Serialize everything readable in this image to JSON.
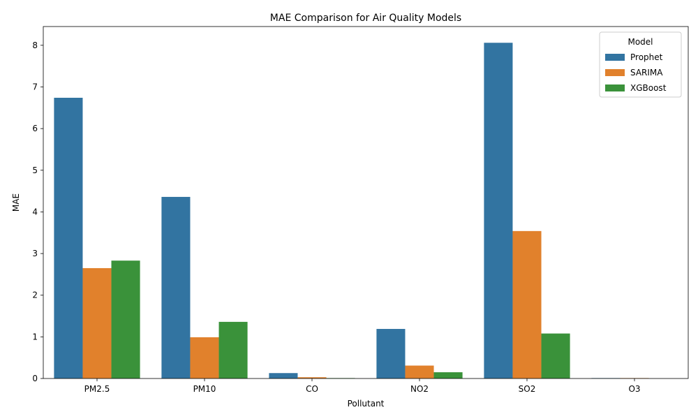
{
  "chart_data": {
    "type": "bar",
    "title": "MAE Comparison for Air Quality Models",
    "xlabel": "Pollutant",
    "ylabel": "MAE",
    "categories": [
      "PM2.5",
      "PM10",
      "CO",
      "NO2",
      "SO2",
      "O3"
    ],
    "series": [
      {
        "name": "Prophet",
        "color": "#3274a1",
        "values": [
          6.74,
          4.36,
          0.13,
          1.19,
          8.06,
          0.01
        ]
      },
      {
        "name": "SARIMA",
        "color": "#e1812c",
        "values": [
          2.65,
          0.99,
          0.03,
          0.31,
          3.54,
          0.01
        ]
      },
      {
        "name": "XGBoost",
        "color": "#3a923a",
        "values": [
          2.83,
          1.36,
          0.01,
          0.15,
          1.08,
          0.0
        ]
      }
    ],
    "ylim": [
      0,
      8.45
    ],
    "yticks": [
      0,
      1,
      2,
      3,
      4,
      5,
      6,
      7,
      8
    ],
    "grid": false,
    "legend": {
      "title": "Model",
      "placement": "top-right"
    }
  }
}
